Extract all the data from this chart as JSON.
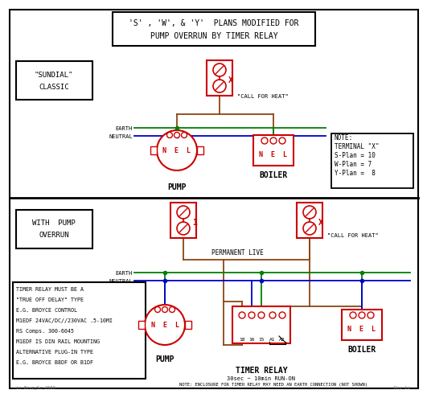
{
  "title_line1": "'S' , 'W', & 'Y'  PLANS MODIFIED FOR",
  "title_line2": "PUMP OVERRUN BY TIMER RELAY",
  "bg_color": "#ffffff",
  "red": "#cc0000",
  "green": "#008000",
  "blue": "#0000cc",
  "brown": "#8B4513",
  "black": "#000000",
  "gray": "#777777",
  "note_text": [
    "NOTE:",
    "TERMINAL \"X\"",
    "S-Plan = 10",
    "W-Plan = 7",
    "Y-Plan =  8"
  ],
  "timer_note": "NOTE: ENCLOSURE FOR TIMER RELAY MAY NEED AN EARTH CONNECTION (NOT SHOWN)",
  "timer_relay_note": "30sec ~ 10min RUN-ON",
  "bottom_left_text": [
    "TIMER RELAY MUST BE A",
    "\"TRUE OFF DELAY\" TYPE",
    "E.G. BROYCE CONTROL",
    "M1EDF 24VAC/DC//230VAC .5-10MI",
    "RS Comps. 300-6045",
    "M1EDF IS DIN RAIL MOUNTING",
    "ALTERNATIVE PLUG-IN TYPE",
    "E.G. BROYCE B8DF OR B1DF"
  ],
  "copyright": "in BrenySc 2000",
  "rev": "Rev 1a"
}
